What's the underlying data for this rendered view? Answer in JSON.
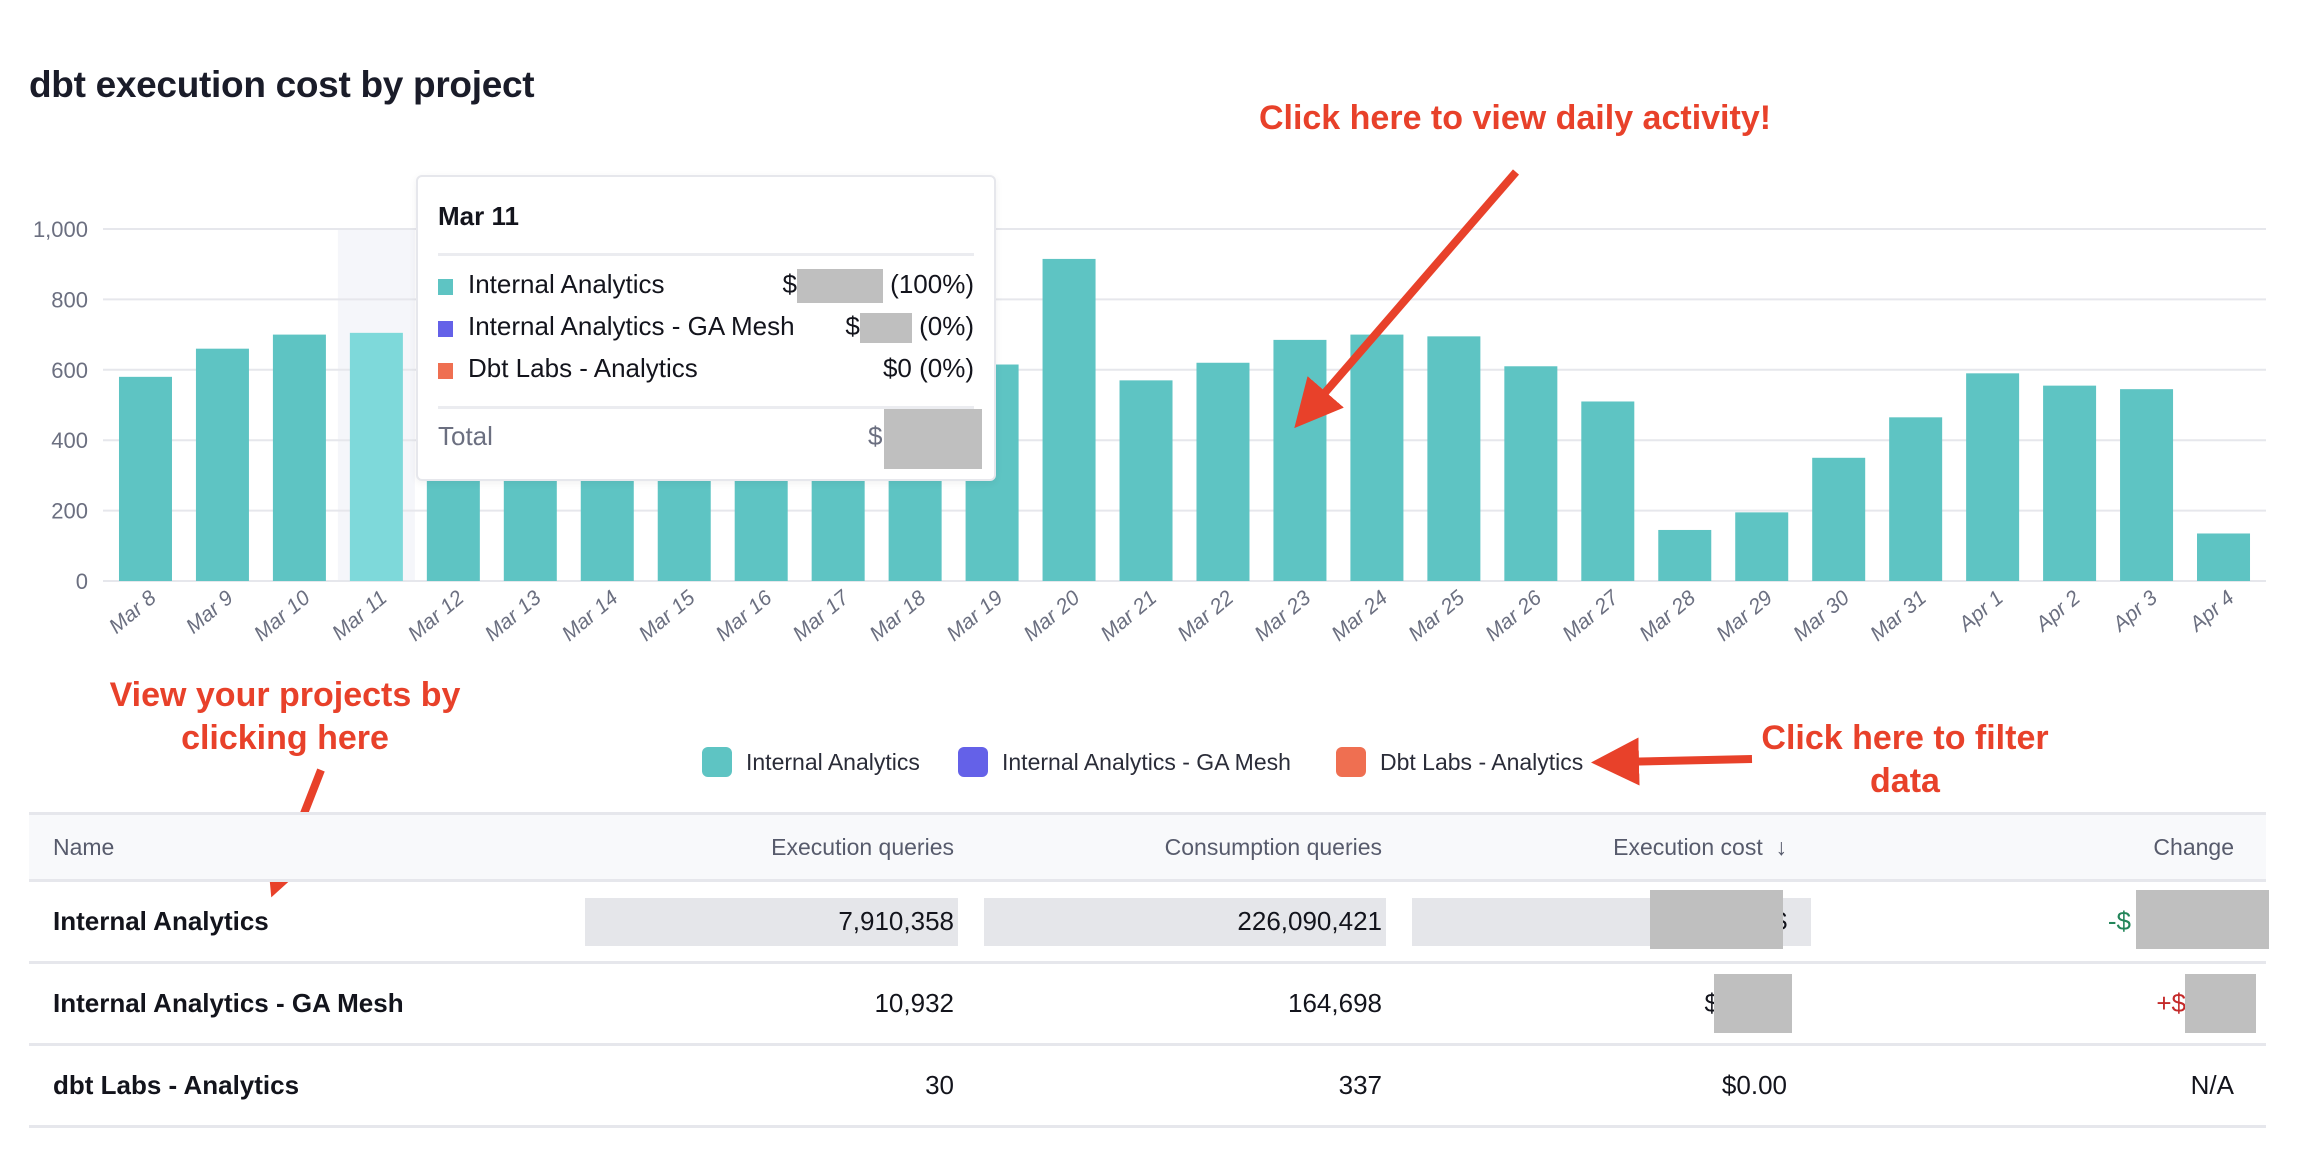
{
  "title": "dbt execution cost by project",
  "colors": {
    "internal_analytics": "#5ec4c3",
    "internal_analytics_highlight": "#7ed9da",
    "ga_mesh": "#6461e8",
    "dbt_labs": "#ef6f51",
    "annotation": "#e8412a",
    "gridline": "#e6e7ec"
  },
  "chart_data": {
    "type": "bar",
    "stacked": true,
    "categories": [
      "Mar 8",
      "Mar 9",
      "Mar 10",
      "Mar 11",
      "Mar 12",
      "Mar 13",
      "Mar 14",
      "Mar 15",
      "Mar 16",
      "Mar 17",
      "Mar 18",
      "Mar 19",
      "Mar 20",
      "Mar 21",
      "Mar 22",
      "Mar 23",
      "Mar 24",
      "Mar 25",
      "Mar 26",
      "Mar 27",
      "Mar 28",
      "Mar 29",
      "Mar 30",
      "Mar 31",
      "Apr 1",
      "Apr 2",
      "Apr 3",
      "Apr 4"
    ],
    "series": [
      {
        "name": "Internal Analytics",
        "values": [
          580,
          660,
          700,
          705,
          620,
          600,
          580,
          560,
          590,
          610,
          620,
          615,
          915,
          570,
          620,
          685,
          700,
          695,
          610,
          510,
          145,
          195,
          350,
          465,
          590,
          555,
          545,
          135
        ]
      },
      {
        "name": "Internal Analytics - GA Mesh",
        "values": [
          0,
          0,
          0,
          0,
          0,
          0,
          0,
          0,
          0,
          0,
          0,
          0,
          0,
          0,
          0,
          0,
          0,
          0,
          0,
          0,
          0,
          0,
          0,
          0,
          0,
          0,
          0,
          0
        ]
      },
      {
        "name": "Dbt Labs - Analytics",
        "values": [
          0,
          0,
          0,
          0,
          0,
          0,
          0,
          0,
          0,
          0,
          0,
          0,
          0,
          0,
          0,
          0,
          0,
          0,
          0,
          0,
          0,
          0,
          0,
          0,
          0,
          0,
          0,
          0
        ]
      }
    ],
    "y_ticks": [
      "0",
      "200",
      "400",
      "600",
      "800",
      "1,000"
    ],
    "ylim": [
      0,
      1000
    ],
    "grid": true,
    "highlighted_category": "Mar 11",
    "legend_placement": "bottom-center"
  },
  "tooltip": {
    "date": "Mar 11",
    "rows": [
      {
        "label": "Internal Analytics",
        "value_prefix": "$",
        "pct": "(100%)"
      },
      {
        "label": "Internal Analytics - GA Mesh",
        "value_prefix": "$",
        "pct": "(0%)"
      },
      {
        "label": "Dbt Labs - Analytics",
        "value": "$0",
        "pct": "(0%)"
      }
    ],
    "total_label": "Total",
    "total_prefix": "$"
  },
  "legend": [
    "Internal Analytics",
    "Internal Analytics - GA Mesh",
    "Dbt Labs - Analytics"
  ],
  "annotations": {
    "daily": "Click here to view daily activity!",
    "projects": "View your projects by clicking here",
    "filter": "Click here to filter data"
  },
  "table": {
    "headers": {
      "name": "Name",
      "exec": "Execution queries",
      "cons": "Consumption queries",
      "cost": "Execution cost",
      "sort_icon": "↓",
      "change": "Change"
    },
    "rows": [
      {
        "name": "Internal Analytics",
        "exec": "7,910,358",
        "cons": "226,090,421",
        "cost": "$",
        "change": "-$",
        "change_dir": "down"
      },
      {
        "name": "Internal Analytics - GA Mesh",
        "exec": "10,932",
        "cons": "164,698",
        "cost": "$",
        "change": "+$",
        "change_dir": "up"
      },
      {
        "name": "dbt Labs - Analytics",
        "exec": "30",
        "cons": "337",
        "cost": "$0.00",
        "change": "N/A",
        "change_dir": "none"
      }
    ]
  }
}
